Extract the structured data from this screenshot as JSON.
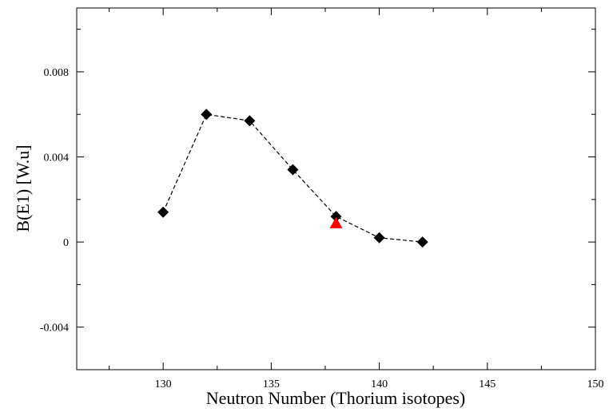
{
  "chart_data": {
    "type": "scatter",
    "title": "",
    "xlabel": "Neutron Number (Thorium isotopes)",
    "ylabel": "B(E1) [W.u]",
    "xlim": [
      126,
      150
    ],
    "ylim": [
      -0.006,
      0.011
    ],
    "x_ticks": [
      130,
      135,
      140,
      145,
      150
    ],
    "x_tick_labels": [
      "130",
      "135",
      "140",
      "145",
      "150"
    ],
    "y_ticks": [
      -0.004,
      0,
      0.004,
      0.008
    ],
    "y_tick_labels": [
      "-0.004",
      "0",
      "0.004",
      "0.008"
    ],
    "grid": false,
    "legend": "none",
    "series": [
      {
        "marker": "diamond",
        "line": "dashed",
        "color": "#000000",
        "x": [
          130,
          132,
          134,
          136,
          138,
          140,
          142
        ],
        "y": [
          0.0014,
          0.006,
          0.0057,
          0.0034,
          0.0012,
          0.0002,
          0.0
        ]
      },
      {
        "marker": "triangle",
        "line": "none",
        "color": "#ff0000",
        "x": [
          138
        ],
        "y": [
          0.00087
        ]
      }
    ]
  }
}
